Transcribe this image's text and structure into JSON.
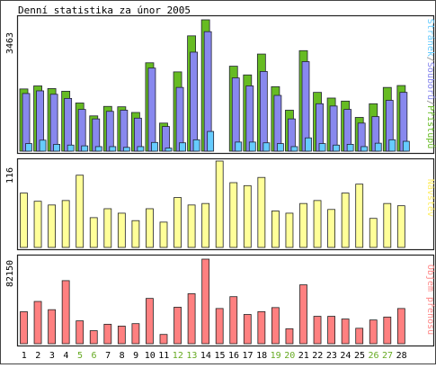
{
  "chart_data": {
    "type": "bar",
    "title": "Denní statistika za únor 2005",
    "days": [
      "1",
      "2",
      "3",
      "4",
      "5",
      "6",
      "7",
      "8",
      "9",
      "10",
      "11",
      "12",
      "13",
      "14",
      "15",
      "16",
      "17",
      "18",
      "19",
      "20",
      "21",
      "22",
      "23",
      "24",
      "25",
      "26",
      "27",
      "28"
    ],
    "weekend_days": [
      "5",
      "6",
      "12",
      "13",
      "19",
      "20",
      "26",
      "27"
    ],
    "day_label_color": "#000000",
    "weekend_label_color": "#66aa22",
    "panels": [
      {
        "id": "top",
        "max_label": "3463",
        "ymax": 3463,
        "legend": [
          {
            "text": "Stránek",
            "color": "#66ccff"
          },
          {
            "text": "/",
            "color": "#888888"
          },
          {
            "text": "Souborů",
            "color": "#8888ee"
          },
          {
            "text": "/",
            "color": "#888888"
          },
          {
            "text": "Přístupů",
            "color": "#66bb22"
          }
        ],
        "series": [
          {
            "name": "Přístupů",
            "color": "#66bb22",
            "values": [
              1640,
              1720,
              1650,
              1580,
              1270,
              930,
              1180,
              1170,
              1020,
              2330,
              740,
              2090,
              3040,
              3463,
              0,
              2240,
              2010,
              2560,
              1700,
              1080,
              2650,
              1550,
              1400,
              1320,
              890,
              1250,
              1680,
              1730
            ]
          },
          {
            "name": "Souborů",
            "color": "#8888ee",
            "values": [
              1520,
              1590,
              1500,
              1390,
              1100,
              850,
              1050,
              1080,
              870,
              2190,
              650,
              1680,
              2610,
              3150,
              0,
              1930,
              1720,
              2100,
              1470,
              850,
              2360,
              1250,
              1190,
              1100,
              740,
              910,
              1340,
              1550
            ]
          },
          {
            "name": "Stránek",
            "color": "#66ccff",
            "values": [
              200,
              290,
              180,
              160,
              140,
              120,
              120,
              100,
              120,
              230,
              80,
              220,
              300,
              520,
              0,
              240,
              240,
              220,
              200,
              120,
              350,
              200,
              160,
              180,
              120,
              210,
              300,
              260
            ]
          }
        ]
      },
      {
        "id": "middle",
        "max_label": "116",
        "ymax": 116,
        "legend": [
          {
            "text": "Návštěv",
            "color": "#ffee66"
          }
        ],
        "series": [
          {
            "name": "Návštěv",
            "color": "#ffff99",
            "values": [
              73,
              62,
              57,
              63,
              97,
              40,
              52,
              46,
              36,
              52,
              34,
              67,
              57,
              59,
              116,
              87,
              83,
              94,
              49,
              46,
              59,
              63,
              51,
              73,
              85,
              39,
              59,
              56
            ]
          }
        ]
      },
      {
        "id": "bottom",
        "max_label": "82150",
        "ymax": 82150,
        "legend": [
          {
            "text": "Objem přenosu",
            "color": "#ff8888"
          }
        ],
        "series": [
          {
            "name": "Objem přenosu",
            "color": "#ff8080",
            "values": [
              31050,
              41050,
              33050,
              61250,
              22200,
              12650,
              18900,
              17100,
              19500,
              44000,
              9000,
              35450,
              48550,
              82150,
              34200,
              45700,
              28400,
              31150,
              35100,
              14550,
              57200,
              26600,
              26600,
              24000,
              15000,
              23050,
              25900,
              34200
            ]
          }
        ]
      }
    ]
  }
}
